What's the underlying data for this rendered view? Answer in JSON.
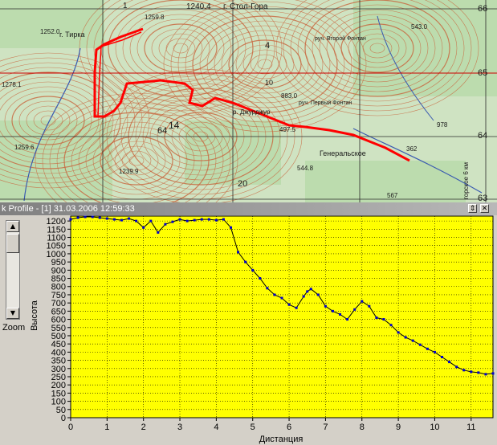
{
  "window": {
    "title": "k Profile - [1] 31.03.2006 12:59:33",
    "restore_glyph": "⇕",
    "close_glyph": "✕"
  },
  "map": {
    "labels": [
      "1240.4",
      "г. Стол-Гора",
      "66",
      "65",
      "64",
      "63",
      "1259.8",
      "1252.0",
      "г. Тирка",
      "1",
      "4",
      "10",
      "14",
      "20",
      "64",
      "543.0",
      "Генеральское",
      "362",
      "544.8",
      "1239.9",
      "1259.6",
      "1278.1",
      "978",
      "883.0",
      "497.5",
      "567",
      "горское 6 км",
      "руч. Второй Фонтан",
      "руч. Первый Фонтан",
      "р. Джурджур"
    ],
    "colors": {
      "contour": "#c8643c",
      "grid": "#2a2a2a",
      "route": "#ff0000",
      "forest": "#bcdcae",
      "river": "#3a5ab0"
    }
  },
  "zoom": {
    "label": "Zoom",
    "up_icon": "▲",
    "down_icon": "▼"
  },
  "chart_data": {
    "type": "line",
    "xlabel": "Дистанция",
    "ylabel": "Высота",
    "xlim": [
      0,
      11.6
    ],
    "ylim": [
      0,
      1230
    ],
    "xticks": [
      0,
      1,
      2,
      3,
      4,
      5,
      6,
      7,
      8,
      9,
      10,
      11
    ],
    "yticks": [
      0,
      50,
      100,
      150,
      200,
      250,
      300,
      350,
      400,
      450,
      500,
      550,
      600,
      650,
      700,
      750,
      800,
      850,
      900,
      950,
      1000,
      1050,
      1100,
      1150,
      1200
    ],
    "background": "#ffff00",
    "line_color": "#000000",
    "marker_color": "#0000cc",
    "grid": true,
    "x": [
      0,
      0.2,
      0.4,
      0.6,
      0.8,
      1.0,
      1.2,
      1.4,
      1.6,
      1.8,
      2.0,
      2.2,
      2.4,
      2.6,
      2.8,
      3.0,
      3.2,
      3.4,
      3.6,
      3.8,
      4.0,
      4.2,
      4.4,
      4.6,
      4.8,
      5.0,
      5.2,
      5.4,
      5.6,
      5.8,
      6.0,
      6.2,
      6.4,
      6.5,
      6.6,
      6.8,
      7.0,
      7.2,
      7.4,
      7.6,
      7.8,
      8.0,
      8.2,
      8.4,
      8.6,
      8.8,
      9.0,
      9.2,
      9.4,
      9.6,
      9.8,
      10.0,
      10.2,
      10.4,
      10.6,
      10.8,
      11.0,
      11.2,
      11.4,
      11.6
    ],
    "y": [
      1210,
      1220,
      1225,
      1225,
      1220,
      1215,
      1210,
      1205,
      1215,
      1200,
      1160,
      1200,
      1130,
      1180,
      1195,
      1210,
      1200,
      1205,
      1210,
      1210,
      1205,
      1210,
      1160,
      1010,
      950,
      900,
      850,
      790,
      750,
      730,
      690,
      670,
      740,
      770,
      785,
      750,
      680,
      650,
      630,
      600,
      660,
      710,
      680,
      610,
      600,
      565,
      520,
      490,
      470,
      445,
      420,
      400,
      370,
      340,
      310,
      290,
      280,
      275,
      265,
      270
    ]
  }
}
